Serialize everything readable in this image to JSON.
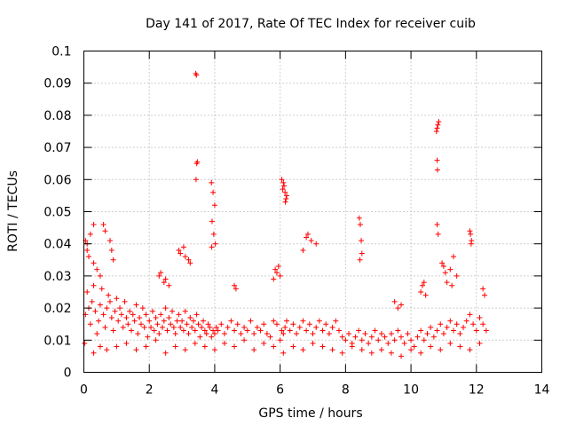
{
  "chart_data": {
    "type": "scatter",
    "title": "Day 141 of 2017, Rate Of TEC Index for receiver cuib",
    "xlabel": "GPS time / hours",
    "ylabel": "ROTI / TECUs",
    "xlim": [
      0,
      14
    ],
    "ylim": [
      0,
      0.1
    ],
    "xticks": [
      "0",
      "2",
      "4",
      "6",
      "8",
      "10",
      "12",
      "14"
    ],
    "yticks": [
      "0",
      "0.01",
      "0.02",
      "0.03",
      "0.04",
      "0.05",
      "0.06",
      "0.07",
      "0.08",
      "0.09",
      "0.1"
    ],
    "grid": true,
    "marker": "+",
    "color": "#ff0000",
    "series": [
      {
        "x": [
          0.02,
          0.05,
          0.1,
          0.15,
          0.2,
          0.25,
          0.3,
          0.35,
          0.4,
          0.45,
          0.5,
          0.55,
          0.6,
          0.65,
          0.7,
          0.75,
          0.8,
          0.85,
          0.9,
          0.95,
          1.0,
          1.05,
          1.1,
          1.15,
          1.2,
          1.25,
          1.3,
          1.35,
          1.4,
          1.45,
          1.5,
          1.55,
          1.6,
          1.65,
          1.7,
          1.75,
          1.8,
          1.85,
          1.9,
          1.95,
          2.0,
          2.05,
          2.1,
          2.15,
          2.2,
          2.25,
          2.3,
          2.35,
          2.4,
          2.45,
          2.5,
          2.55,
          2.6,
          2.65,
          2.7,
          2.75,
          2.8,
          2.85,
          2.9,
          2.95,
          3.0,
          3.05,
          3.1,
          3.15,
          3.2,
          3.25,
          3.3,
          3.35,
          3.4,
          3.45,
          3.5,
          3.55,
          3.6,
          3.65,
          3.7,
          3.75,
          3.8,
          3.85,
          3.9,
          3.95,
          4.0,
          4.05,
          4.1,
          4.2,
          4.3,
          4.4,
          4.5,
          4.6,
          4.7,
          4.8,
          4.9,
          5.0,
          5.1,
          5.2,
          5.3,
          5.4,
          5.5,
          5.6,
          5.7,
          5.8,
          5.9,
          6.0,
          6.05,
          6.1,
          6.15,
          6.2,
          6.3,
          6.4,
          6.5,
          6.6,
          6.7,
          6.8,
          6.9,
          7.0,
          7.1,
          7.2,
          7.3,
          7.4,
          7.5,
          7.6,
          7.7,
          7.8,
          7.9,
          8.0,
          8.1,
          8.2,
          8.3,
          8.4,
          8.5,
          8.6,
          8.7,
          8.8,
          8.9,
          9.0,
          9.1,
          9.2,
          9.3,
          9.4,
          9.5,
          9.6,
          9.7,
          9.8,
          9.9,
          10.0,
          10.1,
          10.2,
          10.3,
          10.4,
          10.5,
          10.6,
          10.7,
          10.8,
          10.9,
          11.0,
          11.1,
          11.2,
          11.3,
          11.4,
          11.5,
          11.6,
          11.7,
          11.8,
          11.9,
          12.0,
          12.1,
          12.2,
          12.3,
          0.1,
          0.2,
          0.3,
          0.6,
          0.65,
          0.8,
          0.85,
          0.9,
          0.3,
          0.5,
          0.7,
          1.0,
          1.3,
          1.6,
          1.9,
          2.2,
          2.5,
          2.8,
          3.1,
          3.4,
          3.7,
          4.0,
          4.3,
          4.6,
          4.9,
          5.2,
          5.5,
          5.8,
          6.1,
          6.4,
          6.7,
          7.0,
          7.3,
          7.6,
          7.9,
          8.2,
          8.5,
          8.8,
          9.1,
          9.4,
          9.7,
          10.0,
          10.3,
          10.6,
          10.9,
          11.2,
          11.5,
          11.8,
          12.1,
          3.42,
          3.44,
          3.45,
          3.47,
          3.43,
          3.9,
          3.95,
          4.0,
          3.92,
          3.97,
          4.02,
          3.91,
          6.05,
          6.1,
          6.12,
          6.15,
          6.18,
          6.08,
          6.2,
          6.16,
          10.8,
          10.82,
          10.85,
          10.78,
          10.8,
          10.81,
          10.8,
          10.83,
          11.8,
          11.82,
          11.85,
          11.84,
          8.42,
          8.45,
          8.48,
          8.5,
          8.44,
          6.8,
          6.85,
          6.95,
          7.1,
          6.7,
          4.6,
          4.65,
          0.05,
          0.1,
          0.15,
          2.9,
          2.95,
          3.05,
          3.1,
          3.2,
          3.25,
          2.3,
          2.35,
          2.45,
          2.5,
          2.6,
          5.95,
          5.9,
          6.0,
          5.85,
          5.8,
          10.95,
          11.0,
          11.05,
          11.1,
          11.2,
          11.25,
          11.3,
          11.4,
          10.3,
          10.35,
          10.4,
          10.45,
          9.5,
          9.6,
          9.7,
          0.3,
          0.4,
          0.5,
          12.2,
          12.25
        ],
        "y": [
          0.009,
          0.018,
          0.025,
          0.02,
          0.015,
          0.022,
          0.027,
          0.019,
          0.012,
          0.016,
          0.021,
          0.026,
          0.018,
          0.014,
          0.02,
          0.024,
          0.022,
          0.017,
          0.013,
          0.019,
          0.023,
          0.016,
          0.02,
          0.018,
          0.014,
          0.022,
          0.017,
          0.015,
          0.019,
          0.013,
          0.018,
          0.016,
          0.021,
          0.012,
          0.017,
          0.015,
          0.02,
          0.014,
          0.018,
          0.011,
          0.016,
          0.014,
          0.019,
          0.013,
          0.017,
          0.015,
          0.012,
          0.018,
          0.014,
          0.016,
          0.02,
          0.013,
          0.017,
          0.015,
          0.019,
          0.014,
          0.012,
          0.016,
          0.018,
          0.014,
          0.016,
          0.013,
          0.019,
          0.015,
          0.012,
          0.017,
          0.014,
          0.016,
          0.013,
          0.018,
          0.015,
          0.011,
          0.014,
          0.016,
          0.013,
          0.012,
          0.015,
          0.014,
          0.011,
          0.013,
          0.012,
          0.014,
          0.013,
          0.015,
          0.012,
          0.014,
          0.016,
          0.013,
          0.015,
          0.012,
          0.014,
          0.013,
          0.016,
          0.012,
          0.014,
          0.013,
          0.015,
          0.012,
          0.011,
          0.016,
          0.015,
          0.01,
          0.013,
          0.012,
          0.014,
          0.016,
          0.013,
          0.015,
          0.012,
          0.014,
          0.016,
          0.013,
          0.015,
          0.012,
          0.014,
          0.016,
          0.013,
          0.015,
          0.012,
          0.014,
          0.016,
          0.013,
          0.011,
          0.01,
          0.012,
          0.009,
          0.011,
          0.013,
          0.01,
          0.012,
          0.009,
          0.011,
          0.013,
          0.01,
          0.012,
          0.011,
          0.009,
          0.012,
          0.01,
          0.013,
          0.011,
          0.009,
          0.012,
          0.01,
          0.008,
          0.011,
          0.013,
          0.01,
          0.012,
          0.014,
          0.011,
          0.013,
          0.015,
          0.012,
          0.014,
          0.016,
          0.013,
          0.015,
          0.012,
          0.014,
          0.016,
          0.018,
          0.015,
          0.013,
          0.017,
          0.015,
          0.013,
          0.04,
          0.043,
          0.046,
          0.046,
          0.044,
          0.041,
          0.038,
          0.035,
          0.006,
          0.008,
          0.007,
          0.008,
          0.009,
          0.007,
          0.008,
          0.01,
          0.006,
          0.008,
          0.007,
          0.009,
          0.008,
          0.007,
          0.009,
          0.008,
          0.01,
          0.007,
          0.009,
          0.008,
          0.006,
          0.008,
          0.007,
          0.009,
          0.008,
          0.007,
          0.006,
          0.008,
          0.007,
          0.006,
          0.007,
          0.006,
          0.005,
          0.007,
          0.006,
          0.008,
          0.007,
          0.009,
          0.008,
          0.007,
          0.009,
          0.093,
          0.0925,
          0.065,
          0.0655,
          0.06,
          0.059,
          0.056,
          0.052,
          0.047,
          0.043,
          0.04,
          0.039,
          0.06,
          0.059,
          0.058,
          0.056,
          0.054,
          0.057,
          0.055,
          0.053,
          0.076,
          0.077,
          0.078,
          0.075,
          0.066,
          0.063,
          0.046,
          0.043,
          0.044,
          0.043,
          0.041,
          0.04,
          0.048,
          0.046,
          0.041,
          0.037,
          0.035,
          0.042,
          0.043,
          0.041,
          0.04,
          0.038,
          0.027,
          0.026,
          0.041,
          0.038,
          0.036,
          0.038,
          0.037,
          0.039,
          0.036,
          0.035,
          0.034,
          0.03,
          0.031,
          0.028,
          0.029,
          0.027,
          0.033,
          0.031,
          0.03,
          0.032,
          0.029,
          0.034,
          0.033,
          0.031,
          0.028,
          0.032,
          0.027,
          0.036,
          0.03,
          0.025,
          0.027,
          0.028,
          0.024,
          0.022,
          0.02,
          0.021,
          0.034,
          0.032,
          0.03,
          0.026,
          0.024
        ]
      }
    ]
  }
}
